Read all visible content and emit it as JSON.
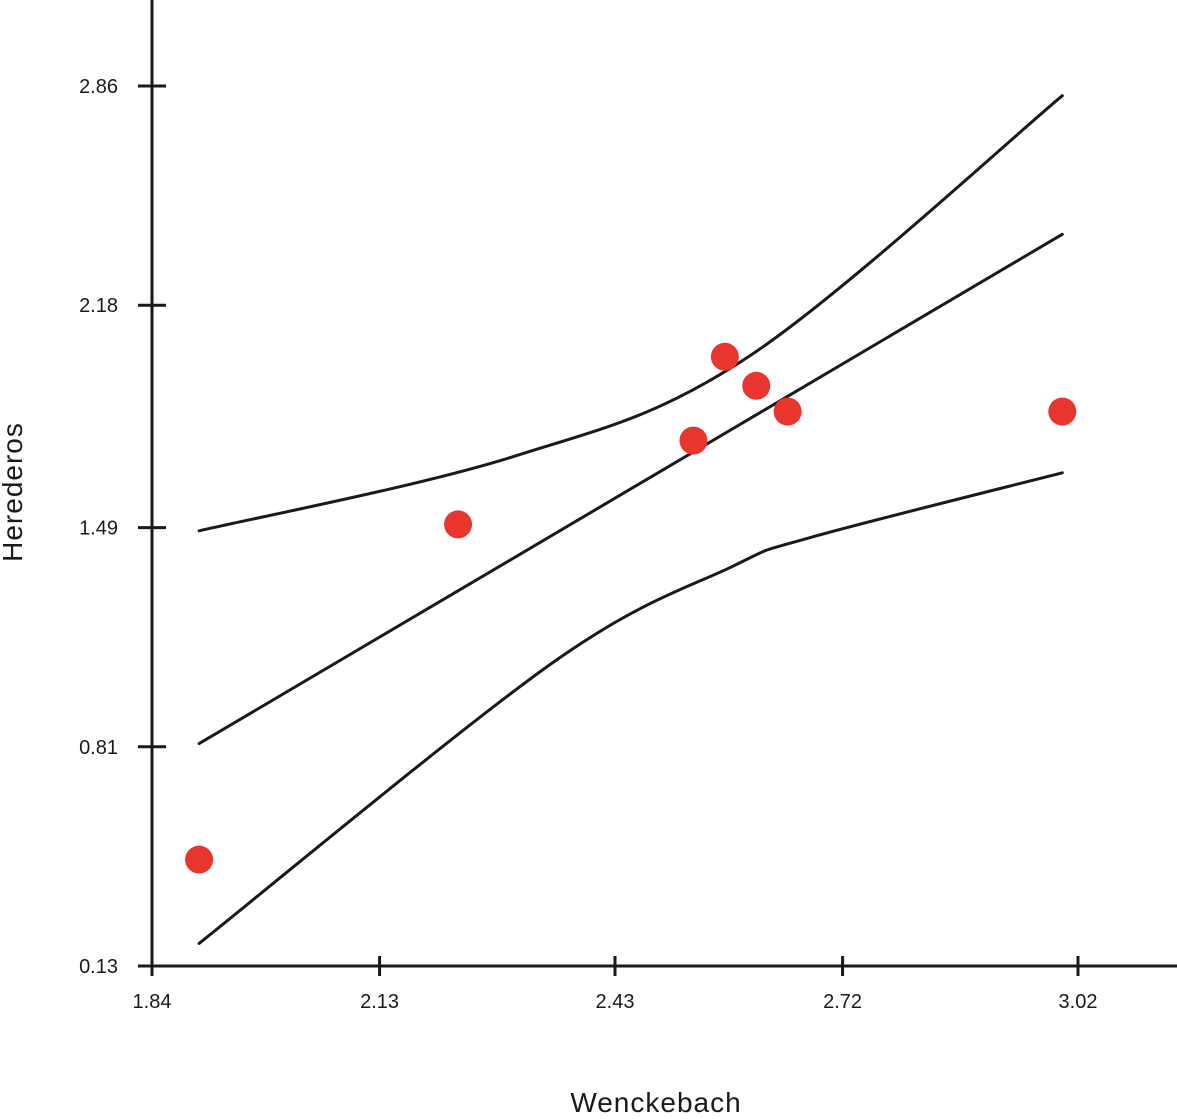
{
  "chart_data": {
    "type": "scatter",
    "title": "",
    "xlabel": "Wenckebach",
    "ylabel": "Herederos",
    "xlim": [
      1.84,
      3.2
    ],
    "ylim": [
      0.13,
      3.1
    ],
    "x_ticks": [
      "1.84",
      "2.13",
      "2.43",
      "2.72",
      "3.02"
    ],
    "y_ticks": [
      "0.13",
      "0.81",
      "1.49",
      "2.18",
      "2.86"
    ],
    "grid": false,
    "legend": "none",
    "point_color": "#e8352d",
    "line_color": "#1a1a1a",
    "series": [
      {
        "kind": "points",
        "x": [
          1.9,
          2.23,
          2.53,
          2.57,
          2.61,
          2.65,
          3.0
        ],
        "y": [
          0.46,
          1.5,
          1.76,
          2.02,
          1.93,
          1.85,
          1.85
        ]
      },
      {
        "kind": "line",
        "x": [
          1.9,
          3.0
        ],
        "y": [
          0.82,
          2.4
        ]
      },
      {
        "kind": "line",
        "x": [
          1.9,
          2.3,
          2.6,
          3.0
        ],
        "y": [
          1.48,
          1.71,
          2.02,
          2.83
        ]
      },
      {
        "kind": "line",
        "x": [
          1.9,
          2.35,
          2.58,
          2.68,
          3.0
        ],
        "y": [
          0.2,
          1.07,
          1.37,
          1.46,
          1.66
        ]
      }
    ]
  }
}
